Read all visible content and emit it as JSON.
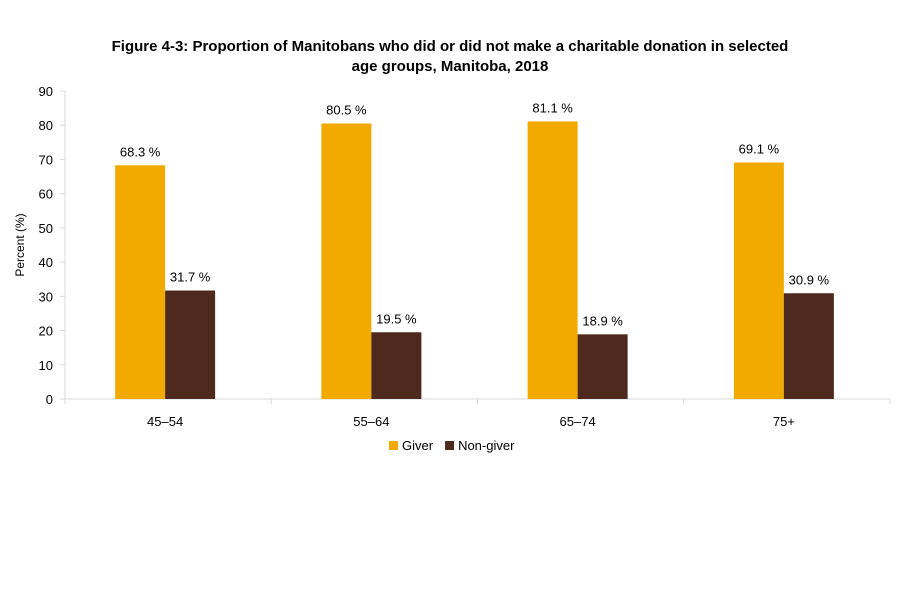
{
  "chart_data": {
    "type": "bar",
    "title_lines": [
      "Figure 4-3: Proportion of Manitobans who did or did not make a charitable donation in selected",
      "age groups, Manitoba, 2018"
    ],
    "xlabel": "",
    "ylabel": "Percent (%)",
    "ylim": [
      0,
      90
    ],
    "yticks": [
      0,
      10,
      20,
      30,
      40,
      50,
      60,
      70,
      80,
      90
    ],
    "categories": [
      "45–54",
      "55–64",
      "65–74",
      "75+"
    ],
    "series": [
      {
        "name": "Giver",
        "color": "#F2A900",
        "values": [
          68.3,
          80.5,
          81.1,
          69.1
        ],
        "labels": [
          "68.3 %",
          "80.5 %",
          "81.1 %",
          "69.1 %"
        ]
      },
      {
        "name": "Non-giver",
        "color": "#4E2A1E",
        "values": [
          31.7,
          19.5,
          18.9,
          30.9
        ],
        "labels": [
          "31.7 %",
          "19.5 %",
          "18.9 %",
          "30.9 %"
        ]
      }
    ],
    "grid": false,
    "legend_position": "bottom"
  }
}
